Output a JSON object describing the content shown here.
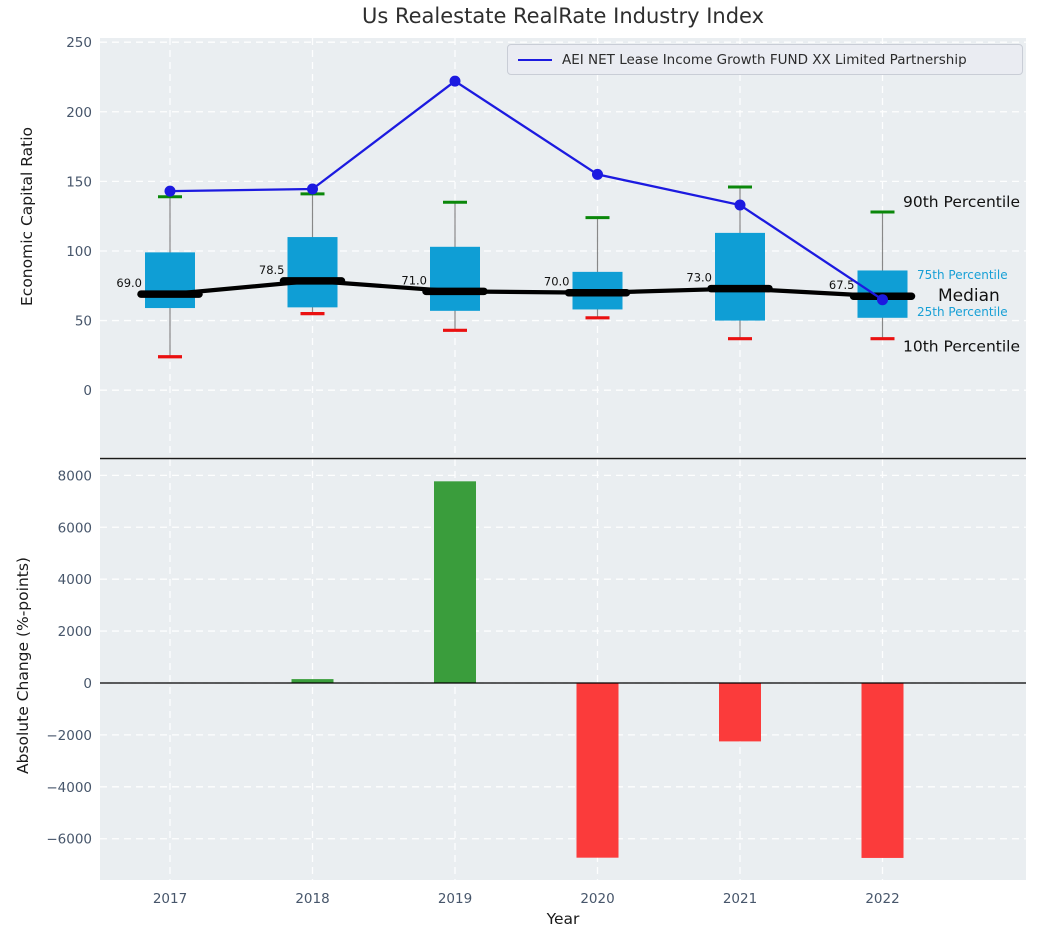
{
  "title": "Us Realestate RealRate Industry Index",
  "legend": {
    "label": "AEI NET Lease Income Growth FUND XX Limited Partnership"
  },
  "colors": {
    "plot_bg": "#eaeef1",
    "grid": "#ffffff",
    "box_fill": "#0f9ed5",
    "fund_line": "#1c1ae0",
    "median_line": "#000000",
    "whisker": "#888888",
    "cap_high": "#0a870a",
    "cap_low": "#ea1010",
    "bar_positive": "#3a9d3c",
    "bar_negative": "#fb3b3b",
    "tick_label": "#47566b",
    "annotation_major": "#111111",
    "annotation_minor": "#18a0d6"
  },
  "chart_data": [
    {
      "type": "boxplot+line",
      "ylabel": "Economic Capital Ratio",
      "ylim": [
        -48,
        253
      ],
      "yticks": [
        0,
        50,
        100,
        150,
        200,
        250
      ],
      "grid": true,
      "legend_position": "upper right",
      "categories": [
        "2017",
        "2018",
        "2019",
        "2020",
        "2021",
        "2022"
      ],
      "boxes": [
        {
          "year": "2017",
          "p10": 24,
          "p25": 59,
          "median": 69.0,
          "p75": 99,
          "p90": 139
        },
        {
          "year": "2018",
          "p10": 55,
          "p25": 59.5,
          "median": 78.5,
          "p75": 110,
          "p90": 141
        },
        {
          "year": "2019",
          "p10": 43,
          "p25": 57,
          "median": 71.0,
          "p75": 103,
          "p90": 135
        },
        {
          "year": "2020",
          "p10": 52,
          "p25": 58,
          "median": 70.0,
          "p75": 85,
          "p90": 124
        },
        {
          "year": "2021",
          "p10": 37,
          "p25": 50,
          "median": 73.0,
          "p75": 113,
          "p90": 146
        },
        {
          "year": "2022",
          "p10": 37,
          "p25": 52,
          "median": 67.5,
          "p75": 86,
          "p90": 128
        }
      ],
      "median_labels": [
        "69.0",
        "78.5",
        "71.0",
        "70.0",
        "73.0",
        "67.5"
      ],
      "series": [
        {
          "name": "AEI NET Lease Income Growth FUND XX Limited Partnership",
          "values": [
            143,
            144.5,
            222,
            155,
            133,
            65
          ]
        }
      ],
      "annotations": [
        {
          "text": "90th Percentile",
          "style": "major",
          "anchor": "p90"
        },
        {
          "text": "75th Percentile",
          "style": "minor",
          "anchor": "p75"
        },
        {
          "text": "Median",
          "style": "median",
          "anchor": "median"
        },
        {
          "text": "25th Percentile",
          "style": "minor",
          "anchor": "p25"
        },
        {
          "text": "10th Percentile",
          "style": "major",
          "anchor": "p10"
        }
      ]
    },
    {
      "type": "bar",
      "ylabel": "Absolute Change (%-points)",
      "xlabel": "Year",
      "ylim": [
        -7590,
        8630
      ],
      "yticks": [
        -6000,
        -4000,
        -2000,
        0,
        2000,
        4000,
        6000,
        8000
      ],
      "grid": true,
      "categories": [
        "2017",
        "2018",
        "2019",
        "2020",
        "2021",
        "2022"
      ],
      "values": [
        0,
        150,
        7770,
        -6730,
        -2250,
        -6740
      ]
    }
  ]
}
